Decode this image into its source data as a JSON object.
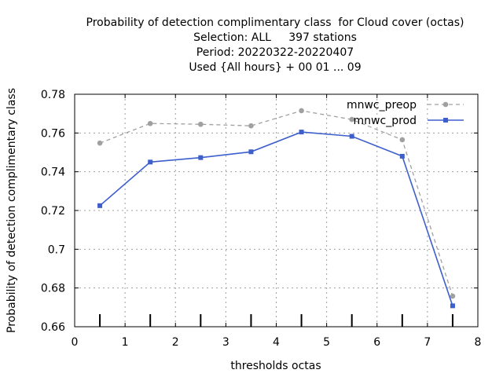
{
  "chart_data": {
    "type": "line",
    "title_lines": [
      "Probability of detection complimentary class  for Cloud cover (octas)",
      "Selection: ALL     397 stations",
      "Period: 20220322-20220407",
      "Used {All hours} + 00 01 ... 09"
    ],
    "xlabel": "thresholds octas",
    "ylabel": "Probability of detection complimentary class",
    "xlim": [
      0,
      8
    ],
    "ylim": [
      0.66,
      0.78
    ],
    "xticks": [
      0,
      1,
      2,
      3,
      4,
      5,
      6,
      7,
      8
    ],
    "yticks": [
      0.66,
      0.68,
      0.7,
      0.72,
      0.74,
      0.76,
      0.78
    ],
    "ytick_labels": [
      "0.66",
      "0.68",
      "0.7",
      "0.72",
      "0.74",
      "0.76",
      "0.78"
    ],
    "grid": true,
    "legend_position": "top-right",
    "bottom_marks_x": [
      0.5,
      1.5,
      2.5,
      3.5,
      4.5,
      5.5,
      6.5,
      7.5
    ],
    "series": [
      {
        "name": "mnwc_preop",
        "color": "#a0a0a0",
        "dashed": true,
        "x": [
          0.5,
          1.5,
          2.5,
          3.5,
          4.5,
          5.5,
          6.5,
          7.5
        ],
        "values": [
          0.7548,
          0.7649,
          0.7645,
          0.7637,
          0.7715,
          0.767,
          0.7565,
          0.6758
        ]
      },
      {
        "name": "mnwc_prod",
        "color": "#3d5fcc",
        "dashed": false,
        "x": [
          0.5,
          1.5,
          2.5,
          3.5,
          4.5,
          5.5,
          6.5,
          7.5
        ],
        "values": [
          0.7225,
          0.745,
          0.7473,
          0.7503,
          0.7605,
          0.7583,
          0.748,
          0.6708
        ]
      }
    ]
  }
}
